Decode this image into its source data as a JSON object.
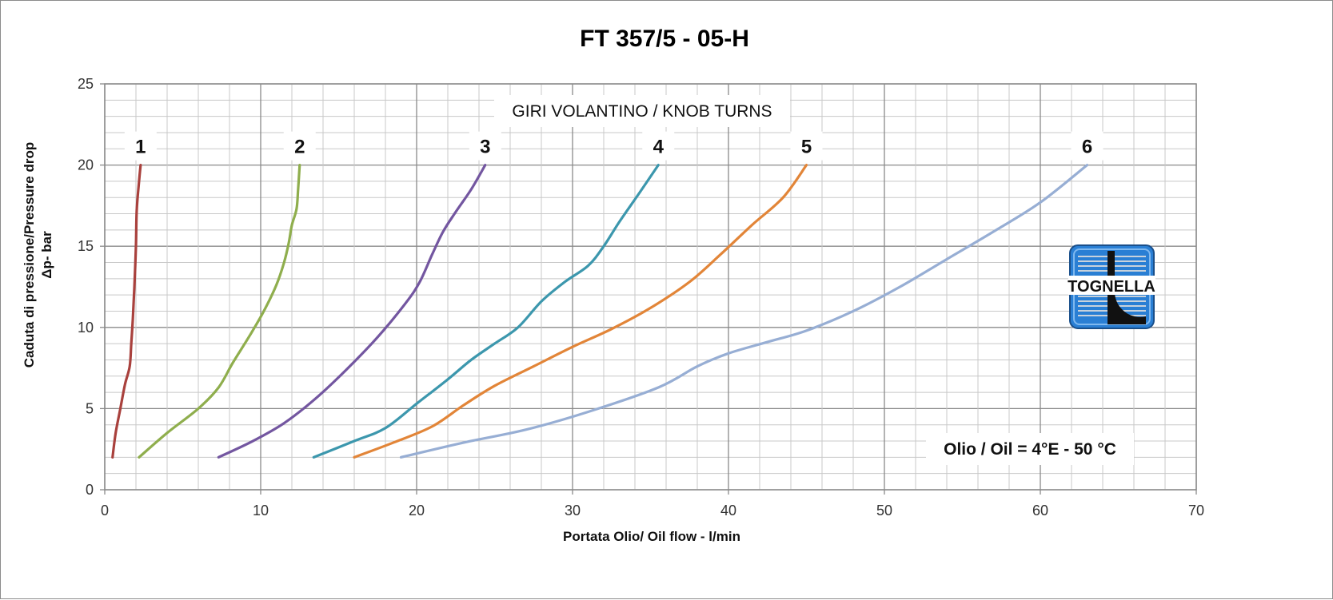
{
  "chart_data": {
    "type": "line",
    "title": "FT 357/5 - 05-H",
    "xlabel": "Portata Olio/ Oil flow -  l/min",
    "ylabel_line1": "Caduta di pressione/Pressure drop",
    "ylabel_line2": "Δp- bar",
    "xlim": [
      0,
      70
    ],
    "ylim": [
      0,
      25
    ],
    "x_ticks": [
      0,
      10,
      20,
      30,
      40,
      50,
      60,
      70
    ],
    "y_ticks": [
      0,
      5,
      10,
      15,
      20,
      25
    ],
    "x_minor_step": 2,
    "y_minor_step": 1,
    "grid": true,
    "legend": "none",
    "annotations": {
      "knob_turns": "GIRI VOLANTINO / KNOB TURNS",
      "oil": "Olio / Oil = 4°E - 50 °C"
    },
    "logo_text": "TOGNELLA",
    "series": [
      {
        "label": "1",
        "color": "#a9413d",
        "points": [
          [
            0.5,
            2
          ],
          [
            0.7,
            3.5
          ],
          [
            1.0,
            5
          ],
          [
            1.3,
            6.5
          ],
          [
            1.6,
            7.6
          ],
          [
            1.7,
            9
          ],
          [
            1.8,
            10.5
          ],
          [
            1.9,
            12.5
          ],
          [
            2.0,
            15
          ],
          [
            2.05,
            17.2
          ],
          [
            2.2,
            19
          ],
          [
            2.3,
            20
          ]
        ]
      },
      {
        "label": "2",
        "color": "#8fae4d",
        "points": [
          [
            2.2,
            2
          ],
          [
            4.0,
            3.5
          ],
          [
            6.0,
            5
          ],
          [
            7.3,
            6.3
          ],
          [
            8.2,
            7.8
          ],
          [
            9.3,
            9.5
          ],
          [
            10.2,
            11
          ],
          [
            11.0,
            12.6
          ],
          [
            11.5,
            14
          ],
          [
            11.8,
            15.2
          ],
          [
            12.0,
            16.3
          ],
          [
            12.3,
            17.3
          ],
          [
            12.4,
            18.5
          ],
          [
            12.5,
            20
          ]
        ]
      },
      {
        "label": "3",
        "color": "#7356a0",
        "points": [
          [
            7.3,
            2
          ],
          [
            9.5,
            3
          ],
          [
            11.5,
            4.1
          ],
          [
            13.5,
            5.6
          ],
          [
            15.5,
            7.4
          ],
          [
            17.5,
            9.4
          ],
          [
            19.3,
            11.5
          ],
          [
            20.2,
            12.8
          ],
          [
            21.0,
            14.5
          ],
          [
            21.7,
            15.9
          ],
          [
            22.5,
            17.1
          ],
          [
            23.5,
            18.5
          ],
          [
            24.4,
            20
          ]
        ]
      },
      {
        "label": "4",
        "color": "#3c97ad",
        "points": [
          [
            13.4,
            2
          ],
          [
            16.0,
            3
          ],
          [
            18.0,
            3.8
          ],
          [
            20.0,
            5.3
          ],
          [
            22.0,
            6.8
          ],
          [
            23.5,
            8
          ],
          [
            25.0,
            9
          ],
          [
            26.5,
            10
          ],
          [
            28.0,
            11.6
          ],
          [
            29.5,
            12.8
          ],
          [
            31.0,
            13.8
          ],
          [
            32.0,
            15
          ],
          [
            33.0,
            16.5
          ],
          [
            34.3,
            18.3
          ],
          [
            35.5,
            20
          ]
        ]
      },
      {
        "label": "5",
        "color": "#e28538",
        "points": [
          [
            16.0,
            2
          ],
          [
            18.5,
            2.9
          ],
          [
            21.0,
            3.9
          ],
          [
            23.0,
            5.2
          ],
          [
            25.0,
            6.4
          ],
          [
            27.5,
            7.6
          ],
          [
            30.0,
            8.8
          ],
          [
            32.5,
            9.9
          ],
          [
            35.0,
            11.2
          ],
          [
            37.5,
            12.8
          ],
          [
            39.5,
            14.5
          ],
          [
            41.5,
            16.3
          ],
          [
            43.5,
            18
          ],
          [
            45.0,
            20
          ]
        ]
      },
      {
        "label": "6",
        "color": "#97aed4",
        "points": [
          [
            19.0,
            2
          ],
          [
            23.0,
            2.9
          ],
          [
            27.0,
            3.7
          ],
          [
            31.0,
            4.8
          ],
          [
            35.5,
            6.3
          ],
          [
            38.0,
            7.6
          ],
          [
            40.0,
            8.4
          ],
          [
            42.5,
            9.1
          ],
          [
            45.0,
            9.8
          ],
          [
            48.0,
            11
          ],
          [
            51.0,
            12.5
          ],
          [
            54.0,
            14.2
          ],
          [
            57.0,
            15.9
          ],
          [
            60.0,
            17.7
          ],
          [
            63.0,
            20
          ]
        ]
      }
    ]
  }
}
